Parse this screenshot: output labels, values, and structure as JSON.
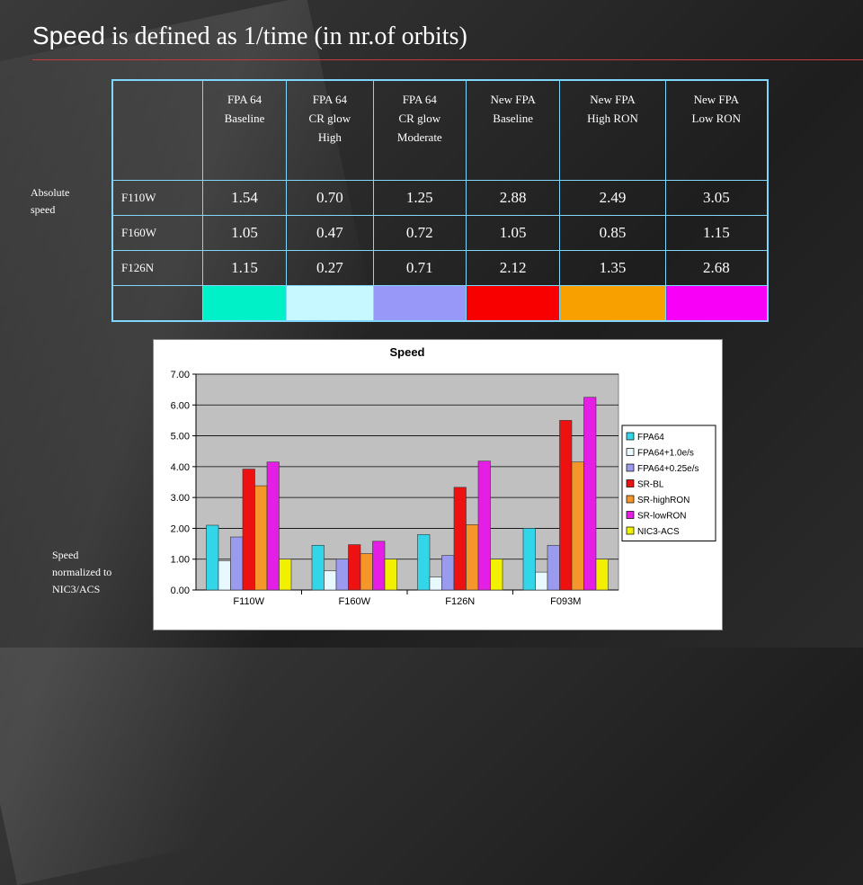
{
  "title": {
    "sans_part": "Speed",
    "serif_part": " is defined as 1/time (in nr.of orbits)"
  },
  "labels": {
    "absolute_line1": "Absolute",
    "absolute_line2": "speed",
    "normalized_line1": "Speed",
    "normalized_line2": "normalized to",
    "normalized_line3": "NIC3/ACS"
  },
  "table": {
    "columns": [
      [
        "FPA 64",
        "Baseline"
      ],
      [
        "FPA 64",
        "CR glow",
        "High"
      ],
      [
        "FPA 64",
        "CR glow",
        "Moderate"
      ],
      [
        "New FPA",
        "Baseline"
      ],
      [
        "New FPA",
        "High RON"
      ],
      [
        "New FPA",
        "Low RON"
      ]
    ],
    "rows": [
      {
        "label": "F110W",
        "values": [
          "1.54",
          "0.70",
          "1.25",
          "2.88",
          "2.49",
          "3.05"
        ]
      },
      {
        "label": "F160W",
        "values": [
          "1.05",
          "0.47",
          "0.72",
          "1.05",
          "0.85",
          "1.15"
        ]
      },
      {
        "label": "F126N",
        "values": [
          "1.15",
          "0.27",
          "0.71",
          "2.12",
          "1.35",
          "2.68"
        ]
      }
    ],
    "swatch_colors": [
      "#00f0c8",
      "#c8f8ff",
      "#9898f8",
      "#f80000",
      "#f8a000",
      "#f800f8"
    ]
  },
  "chart_data": {
    "type": "bar",
    "title": "Speed",
    "xlabel": "",
    "ylabel": "",
    "ylim": [
      0,
      7
    ],
    "yticks": [
      "0.00",
      "1.00",
      "2.00",
      "3.00",
      "4.00",
      "5.00",
      "6.00",
      "7.00"
    ],
    "grid": true,
    "legend": "right",
    "plot_background": "#c0c0c0",
    "categories": [
      "F110W",
      "F160W",
      "F126N",
      "F093M"
    ],
    "series": [
      {
        "name": "FPA64",
        "color": "#33d6e8",
        "values": [
          2.1,
          1.45,
          1.8,
          2.0
        ]
      },
      {
        "name": "FPA64+1.0e/s",
        "color": "#e8f8ff",
        "values": [
          0.95,
          0.62,
          0.42,
          0.58
        ]
      },
      {
        "name": "FPA64+0.25e/s",
        "color": "#9a9aee",
        "values": [
          1.72,
          1.0,
          1.12,
          1.45
        ]
      },
      {
        "name": "SR-BL",
        "color": "#ee1111",
        "values": [
          3.92,
          1.47,
          3.33,
          5.5
        ]
      },
      {
        "name": "SR-highRON",
        "color": "#f5962a",
        "values": [
          3.38,
          1.18,
          2.12,
          4.15
        ]
      },
      {
        "name": "SR-lowRON",
        "color": "#e41ee4",
        "values": [
          4.15,
          1.58,
          4.18,
          6.25
        ]
      },
      {
        "name": "NIC3-ACS",
        "color": "#f0f000",
        "values": [
          1.0,
          1.0,
          1.0,
          1.0
        ]
      }
    ]
  }
}
